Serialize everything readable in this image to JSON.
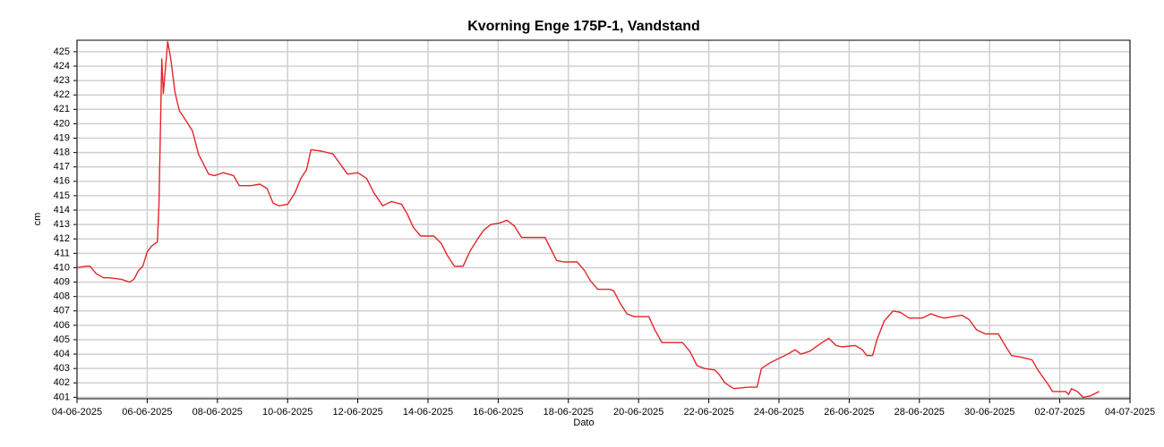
{
  "chart_data": {
    "type": "line",
    "title": "Kvorning Enge 175P-1, Vandstand",
    "x_label": "Dato",
    "y_label": "cm",
    "color": "#e3262b",
    "grid": true,
    "ylim": [
      400.9,
      425.8
    ],
    "yticks": [
      401,
      402,
      403,
      404,
      405,
      406,
      407,
      408,
      409,
      410,
      411,
      412,
      413,
      414,
      415,
      416,
      417,
      418,
      419,
      420,
      421,
      422,
      423,
      424,
      425
    ],
    "xlim": [
      "04-06-2025",
      "04-07-2025"
    ],
    "xticks": [
      "04-06-2025",
      "06-06-2025",
      "08-06-2025",
      "10-06-2025",
      "12-06-2025",
      "14-06-2025",
      "16-06-2025",
      "18-06-2025",
      "20-06-2025",
      "22-06-2025",
      "24-06-2025",
      "26-06-2025",
      "28-06-2025",
      "30-06-2025",
      "02-07-2025",
      "04-07-2025"
    ],
    "x": [
      "04-06-2025 00:00",
      "04-06-2025 06:00",
      "04-06-2025 09:00",
      "04-06-2025 13:00",
      "04-06-2025 18:00",
      "04-06-2025 22:00",
      "05-06-2025 06:00",
      "05-06-2025 12:00",
      "05-06-2025 15:00",
      "05-06-2025 18:00",
      "05-06-2025 21:00",
      "06-06-2025 00:00",
      "06-06-2025 03:00",
      "06-06-2025 07:00",
      "06-06-2025 08:00",
      "06-06-2025 10:00",
      "06-06-2025 11:00",
      "06-06-2025 14:00",
      "06-06-2025 16:00",
      "06-06-2025 19:00",
      "06-06-2025 22:00",
      "07-06-2025 02:00",
      "07-06-2025 07:00",
      "07-06-2025 11:00",
      "07-06-2025 15:00",
      "07-06-2025 18:00",
      "07-06-2025 22:00",
      "08-06-2025 04:00",
      "08-06-2025 11:00",
      "08-06-2025 15:00",
      "08-06-2025 23:00",
      "09-06-2025 05:00",
      "09-06-2025 10:00",
      "09-06-2025 14:00",
      "09-06-2025 18:00",
      "10-06-2025 00:00",
      "10-06-2025 05:00",
      "10-06-2025 09:00",
      "10-06-2025 13:00",
      "10-06-2025 16:00",
      "10-06-2025 23:00",
      "11-06-2025 07:00",
      "11-06-2025 12:00",
      "11-06-2025 17:00",
      "12-06-2025 00:00",
      "12-06-2025 06:00",
      "12-06-2025 11:00",
      "12-06-2025 17:00",
      "12-06-2025 23:00",
      "13-06-2025 06:00",
      "13-06-2025 10:00",
      "13-06-2025 14:00",
      "13-06-2025 19:00",
      "14-06-2025 04:00",
      "14-06-2025 09:00",
      "14-06-2025 13:00",
      "14-06-2025 18:00",
      "15-06-2025 00:00",
      "15-06-2025 05:00",
      "15-06-2025 10:00",
      "15-06-2025 14:00",
      "15-06-2025 19:00",
      "16-06-2025 01:00",
      "16-06-2025 06:00",
      "16-06-2025 11:00",
      "16-06-2025 16:00",
      "16-06-2025 22:00",
      "17-06-2025 08:00",
      "17-06-2025 12:00",
      "17-06-2025 16:00",
      "17-06-2025 21:00",
      "18-06-2025 06:00",
      "18-06-2025 11:00",
      "18-06-2025 15:00",
      "18-06-2025 20:00",
      "19-06-2025 04:00",
      "19-06-2025 07:00",
      "19-06-2025 11:00",
      "19-06-2025 16:00",
      "19-06-2025 21:00",
      "20-06-2025 07:00",
      "20-06-2025 11:00",
      "20-06-2025 16:00",
      "21-06-2025 06:00",
      "21-06-2025 11:00",
      "21-06-2025 16:00",
      "21-06-2025 21:00",
      "22-06-2025 04:00",
      "22-06-2025 07:00",
      "22-06-2025 11:00",
      "22-06-2025 17:00",
      "23-06-2025 03:00",
      "23-06-2025 09:00",
      "23-06-2025 12:00",
      "23-06-2025 18:00",
      "24-06-2025 00:00",
      "24-06-2025 06:00",
      "24-06-2025 11:00",
      "24-06-2025 15:00",
      "24-06-2025 21:00",
      "25-06-2025 04:00",
      "25-06-2025 10:00",
      "25-06-2025 15:00",
      "25-06-2025 19:00",
      "26-06-2025 04:00",
      "26-06-2025 09:00",
      "26-06-2025 12:00",
      "26-06-2025 16:00",
      "26-06-2025 19:00",
      "27-06-2025 00:00",
      "27-06-2025 06:00",
      "27-06-2025 11:00",
      "27-06-2025 17:00",
      "28-06-2025 02:00",
      "28-06-2025 08:00",
      "28-06-2025 13:00",
      "28-06-2025 17:00",
      "28-06-2025 23:00",
      "29-06-2025 05:00",
      "29-06-2025 10:00",
      "29-06-2025 15:00",
      "29-06-2025 21:00",
      "30-06-2025 06:00",
      "30-06-2025 10:00",
      "30-06-2025 15:00",
      "30-06-2025 21:00",
      "01-07-2025 05:00",
      "01-07-2025 09:00",
      "01-07-2025 16:00",
      "01-07-2025 19:00",
      "02-07-2025 04:00",
      "02-07-2025 06:00",
      "02-07-2025 08:00",
      "02-07-2025 12:00",
      "02-07-2025 16:00",
      "02-07-2025 21:00",
      "03-07-2025 03:00"
    ],
    "values": [
      410.0,
      410.1,
      410.1,
      409.6,
      409.3,
      409.3,
      409.2,
      409.0,
      409.2,
      409.8,
      410.1,
      411.1,
      411.5,
      411.8,
      414.3,
      424.5,
      422.1,
      425.7,
      424.6,
      422.2,
      420.9,
      420.3,
      419.5,
      417.9,
      417.1,
      416.5,
      416.4,
      416.6,
      416.4,
      415.7,
      415.7,
      415.8,
      415.5,
      414.5,
      414.3,
      414.4,
      415.2,
      416.2,
      416.8,
      418.2,
      418.1,
      417.9,
      417.2,
      416.5,
      416.6,
      416.2,
      415.2,
      414.3,
      414.6,
      414.4,
      413.7,
      412.8,
      412.2,
      412.2,
      411.7,
      410.9,
      410.1,
      410.1,
      411.2,
      412.0,
      412.6,
      413.0,
      413.1,
      413.3,
      412.9,
      412.1,
      412.1,
      412.1,
      411.3,
      410.5,
      410.4,
      410.4,
      409.8,
      409.1,
      408.5,
      408.5,
      408.4,
      407.6,
      406.8,
      406.6,
      406.6,
      405.7,
      404.8,
      404.8,
      404.2,
      403.2,
      403.0,
      402.9,
      402.6,
      402.0,
      401.6,
      401.7,
      401.7,
      403.0,
      403.4,
      403.7,
      404.0,
      404.3,
      404.0,
      404.2,
      404.7,
      405.1,
      404.6,
      404.5,
      404.6,
      404.3,
      403.9,
      403.9,
      405.0,
      406.3,
      407.0,
      406.9,
      406.5,
      406.5,
      406.8,
      406.6,
      406.5,
      406.6,
      406.7,
      406.4,
      405.7,
      405.4,
      405.4,
      404.7,
      403.9,
      403.8,
      403.6,
      402.9,
      401.9,
      401.4,
      401.4,
      401.2,
      401.6,
      401.4,
      401.0,
      401.1,
      401.4
    ]
  }
}
